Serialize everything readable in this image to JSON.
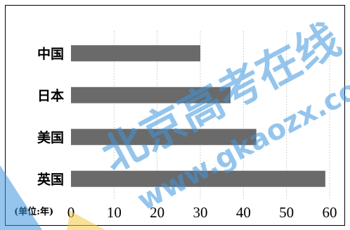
{
  "chart_data": {
    "type": "bar",
    "orientation": "horizontal",
    "categories": [
      "中国",
      "日本",
      "美国",
      "英国"
    ],
    "values": [
      30,
      37,
      43,
      59
    ],
    "xlim": [
      0,
      60
    ],
    "xticks": [
      "0",
      "10",
      "20",
      "30",
      "40",
      "50",
      "60"
    ],
    "unit_label": "(单位:年)",
    "grid": true,
    "bar_color": "#6a6a6a",
    "frame_color": "#000000",
    "grid_color": "#cfcfcf"
  },
  "watermark": {
    "text_cn": "北京高考在线",
    "text_url": "www.gkaozx.com",
    "color": "#3f96dc",
    "accent_color": "#f5c842"
  }
}
